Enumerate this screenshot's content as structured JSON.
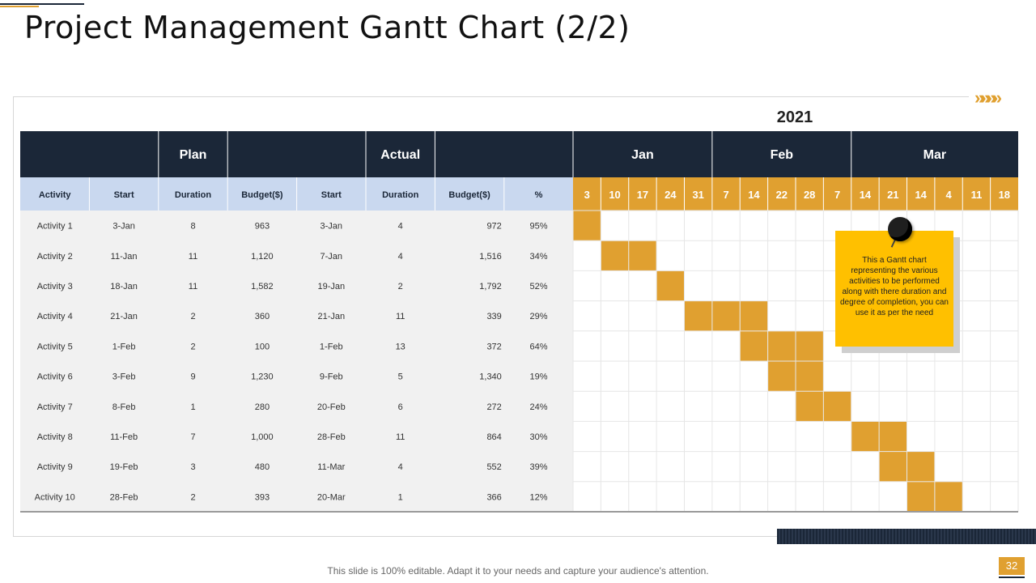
{
  "title": "Project Management Gantt Chart (2/2)",
  "chevrons": "»»»»",
  "footer": "This slide is 100% editable. Adapt it to your needs and capture your audience's attention.",
  "page_number": "32",
  "note": "This a Gantt chart representing the various activities to be performed along with there duration and degree of completion, you can use it as per the need",
  "colors": {
    "navy": "#1b2738",
    "gold": "#e0a030",
    "note": "#ffc000",
    "colhdr": "#c9d8ef"
  },
  "chart_data": {
    "type": "table",
    "title": "2021",
    "group_headers": [
      "Plan",
      "Actual"
    ],
    "columns": [
      "Activity",
      "Start",
      "Duration",
      "Budget($)",
      "Start",
      "Duration",
      "Budget($)",
      "%"
    ],
    "months": [
      {
        "label": "Jan",
        "weeks": 5
      },
      {
        "label": "Feb",
        "weeks": 5
      },
      {
        "label": "Mar",
        "weeks": 6
      }
    ],
    "weeks": [
      "3",
      "10",
      "17",
      "24",
      "31",
      "7",
      "14",
      "22",
      "28",
      "7",
      "14",
      "21",
      "14",
      "4",
      "11",
      "18"
    ],
    "rows": [
      [
        "Activity 1",
        "3-Jan",
        "8",
        "963",
        "3-Jan",
        "4",
        "972",
        "95%"
      ],
      [
        "Activity 2",
        "11-Jan",
        "11",
        "1,120",
        "7-Jan",
        "4",
        "1,516",
        "34%"
      ],
      [
        "Activity 3",
        "18-Jan",
        "11",
        "1,582",
        "19-Jan",
        "2",
        "1,792",
        "52%"
      ],
      [
        "Activity 4",
        "21-Jan",
        "2",
        "360",
        "21-Jan",
        "11",
        "339",
        "29%"
      ],
      [
        "Activity 5",
        "1-Feb",
        "2",
        "100",
        "1-Feb",
        "13",
        "372",
        "64%"
      ],
      [
        "Activity 6",
        "3-Feb",
        "9",
        "1,230",
        "9-Feb",
        "5",
        "1,340",
        "19%"
      ],
      [
        "Activity 7",
        "8-Feb",
        "1",
        "280",
        "20-Feb",
        "6",
        "272",
        "24%"
      ],
      [
        "Activity 8",
        "11-Feb",
        "7",
        "1,000",
        "28-Feb",
        "11",
        "864",
        "30%"
      ],
      [
        "Activity 9",
        "19-Feb",
        "3",
        "480",
        "11-Mar",
        "4",
        "552",
        "39%"
      ],
      [
        "Activity 10",
        "28-Feb",
        "2",
        "393",
        "20-Mar",
        "1",
        "366",
        "12%"
      ]
    ],
    "bars": [
      {
        "activity": "Activity 1",
        "start_week": 0,
        "length": 1
      },
      {
        "activity": "Activity 2",
        "start_week": 1,
        "length": 2
      },
      {
        "activity": "Activity 3",
        "start_week": 3,
        "length": 1
      },
      {
        "activity": "Activity 4",
        "start_week": 4,
        "length": 3
      },
      {
        "activity": "Activity 5",
        "start_week": 6,
        "length": 3
      },
      {
        "activity": "Activity 6",
        "start_week": 7,
        "length": 2
      },
      {
        "activity": "Activity 7",
        "start_week": 8,
        "length": 2
      },
      {
        "activity": "Activity 8",
        "start_week": 10,
        "length": 2
      },
      {
        "activity": "Activity 9",
        "start_week": 11,
        "length": 2
      },
      {
        "activity": "Activity 10",
        "start_week": 12,
        "length": 2
      }
    ]
  }
}
